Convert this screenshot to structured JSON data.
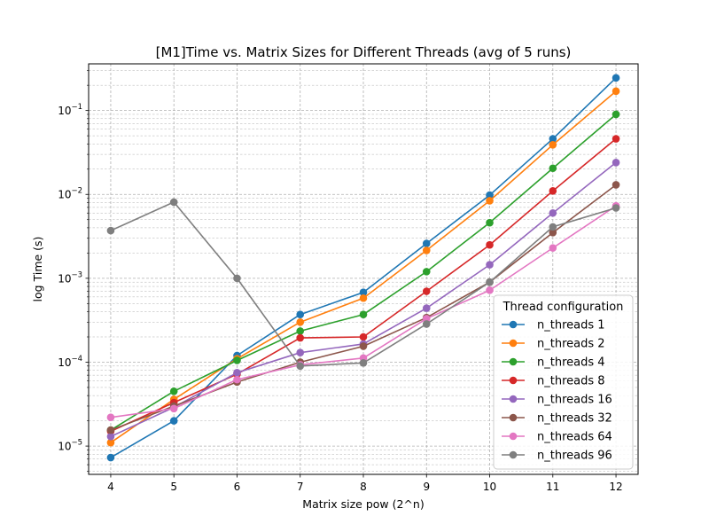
{
  "chart_data": {
    "type": "line",
    "title": "[M1]Time vs. Matrix Sizes for Different Threads (avg of 5 runs)",
    "xlabel": "Matrix size pow (2^n)",
    "ylabel": "log Time (s)",
    "x": [
      4,
      5,
      6,
      7,
      8,
      9,
      10,
      11,
      12
    ],
    "xlim": [
      3.65,
      12.35
    ],
    "ylim": [
      4.6e-06,
      0.36
    ],
    "yscale": "log",
    "y_ticks": [
      {
        "value": 1e-05,
        "base": "10",
        "exp": "−5"
      },
      {
        "value": 0.0001,
        "base": "10",
        "exp": "−4"
      },
      {
        "value": 0.001,
        "base": "10",
        "exp": "−3"
      },
      {
        "value": 0.01,
        "base": "10",
        "exp": "−2"
      },
      {
        "value": 0.1,
        "base": "10",
        "exp": "−1"
      }
    ],
    "x_ticks": [
      "4",
      "5",
      "6",
      "7",
      "8",
      "9",
      "10",
      "11",
      "12"
    ],
    "grid": true,
    "legend": {
      "title": "Thread configuration",
      "placement": "lower-right"
    },
    "series": [
      {
        "name": "n_threads 1",
        "color": "#1f77b4",
        "values": [
          7.3e-06,
          2e-05,
          0.00012,
          0.00037,
          0.00068,
          0.0026,
          0.0098,
          0.046,
          0.245
        ]
      },
      {
        "name": "n_threads 2",
        "color": "#ff7f0e",
        "values": [
          1.1e-05,
          3.6e-05,
          0.00011,
          0.0003,
          0.00058,
          0.00215,
          0.0084,
          0.039,
          0.17
        ]
      },
      {
        "name": "n_threads 4",
        "color": "#2ca02c",
        "values": [
          1.55e-05,
          4.5e-05,
          0.000105,
          0.000235,
          0.00037,
          0.0012,
          0.0046,
          0.0205,
          0.09
        ]
      },
      {
        "name": "n_threads 8",
        "color": "#d62728",
        "values": [
          1.5e-05,
          3.3e-05,
          7.2e-05,
          0.000195,
          0.0002,
          0.0007,
          0.0025,
          0.011,
          0.046
        ]
      },
      {
        "name": "n_threads 16",
        "color": "#9467bd",
        "values": [
          1.3e-05,
          2.9e-05,
          7.5e-05,
          0.00013,
          0.000165,
          0.00044,
          0.00145,
          0.006,
          0.024
        ]
      },
      {
        "name": "n_threads 32",
        "color": "#8c564b",
        "values": [
          1.55e-05,
          3e-05,
          5.8e-05,
          0.0001,
          0.000155,
          0.00034,
          0.0009,
          0.0035,
          0.013
        ]
      },
      {
        "name": "n_threads 64",
        "color": "#e377c2",
        "values": [
          2.2e-05,
          2.8e-05,
          6.2e-05,
          9.3e-05,
          0.000112,
          0.00033,
          0.00072,
          0.0023,
          0.0073
        ]
      },
      {
        "name": "n_threads 96",
        "color": "#7f7f7f",
        "values": [
          0.0037,
          0.0081,
          0.001,
          9e-05,
          9.8e-05,
          0.000285,
          0.0009,
          0.0041,
          0.0069
        ]
      }
    ]
  }
}
